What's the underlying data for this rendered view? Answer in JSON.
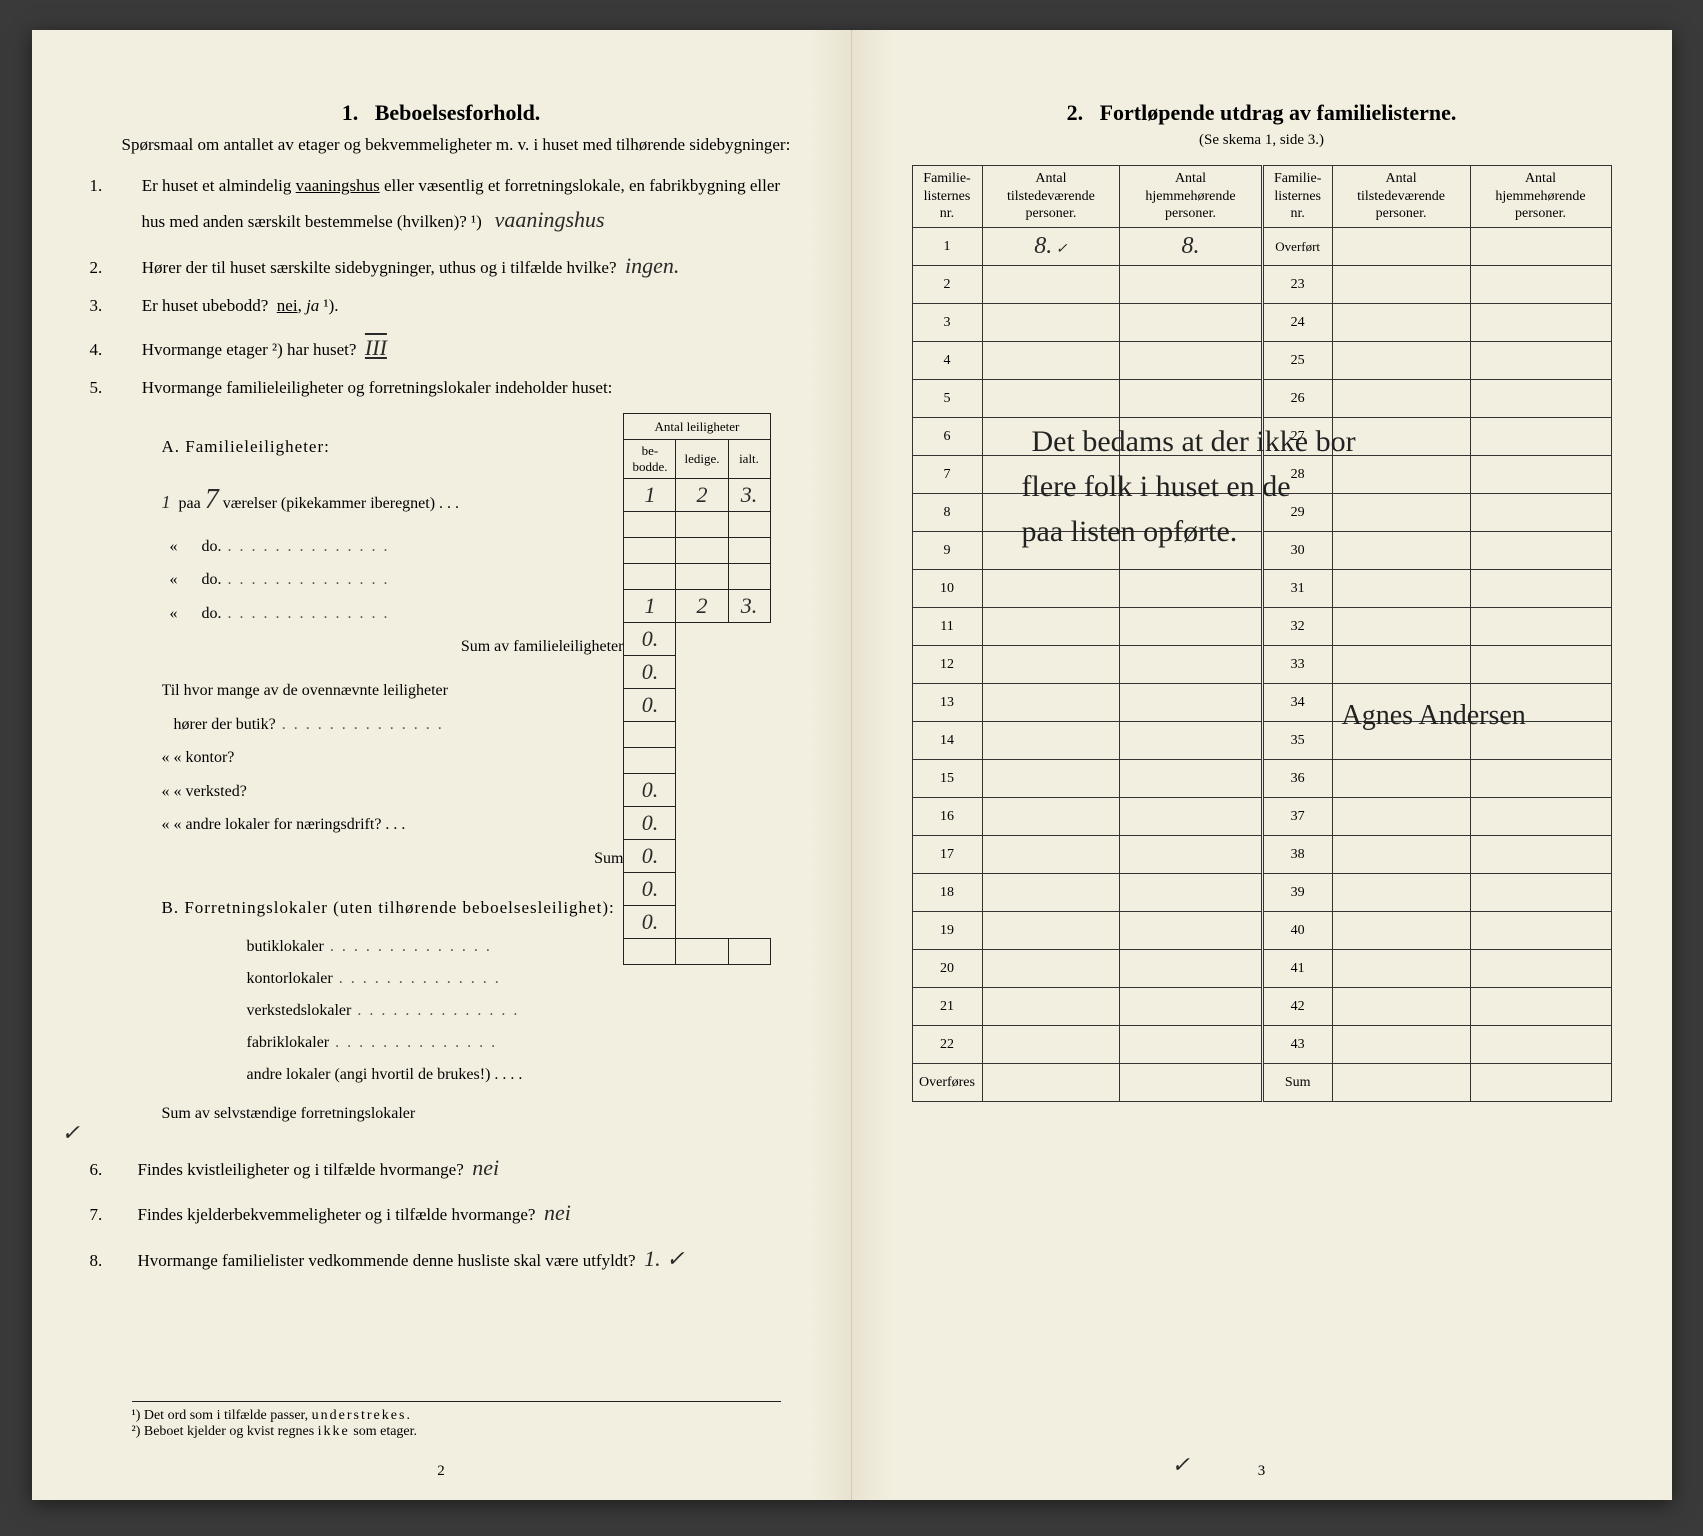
{
  "left": {
    "heading_num": "1.",
    "heading": "Beboelsesforhold.",
    "intro": "Spørsmaal om antallet av etager og bekvemmeligheter m. v. i huset med tilhørende sidebygninger:",
    "q1_label": "Er huset et almindelig vaaningshus eller væsentlig et forretningslokale, en fabrikbygning eller hus med anden særskilt bestemmelse (hvilken)? ¹)",
    "q1_underlined": "vaaningshus",
    "q1_hand": "vaaningshus",
    "q2_label": "Hører der til huset særskilte sidebygninger, uthus og i tilfælde hvilke?",
    "q2_hand": "ingen.",
    "q3_label": "Er huset ubebodd?",
    "q3_printed": "nei, ja ¹).",
    "q3_under": "nei",
    "q4_label": "Hvormange etager ²) har huset?",
    "q4_hand": "III",
    "q5_label": "Hvormange familieleiligheter og forretningslokaler indeholder huset:",
    "apt_header_group": "Antal leiligheter",
    "apt_h1": "be-\nbodde.",
    "apt_h2": "ledige.",
    "apt_h3": "ialt.",
    "sectA": "A. Familieleiligheter:",
    "rowA1_lead": "paa",
    "rowA1_num_hand": "7",
    "rowA1_text": "værelser (pikekammer iberegnet) . . .",
    "rowA1_c1": "1",
    "rowA1_c2": "2",
    "rowA1_c3": "3.",
    "row_do": "do.",
    "sumA_label": "Sum av familieleiligheter",
    "sumA_c1": "1",
    "sumA_c2": "2",
    "sumA_c3": "3.",
    "til_label": "Til hvor mange av de ovennævnte leiligheter",
    "butik": "hører der butik?",
    "kontor": "«     «   kontor?",
    "verksted": "«     «   verksted?",
    "andre_naering": "«     «   andre lokaler for næringsdrift? . . .",
    "zero": "0.",
    "sum_small": "Sum",
    "sectB": "B. Forretningslokaler (uten tilhørende beboelsesleilighet):",
    "b1": "butiklokaler",
    "b2": "kontorlokaler",
    "b3": "verkstedslokaler",
    "b4": "fabriklokaler",
    "b5": "andre lokaler (angi hvortil de brukes!)",
    "sumB": "Sum av selvstændige forretningslokaler",
    "q6": "Findes kvistleiligheter og i tilfælde hvormange?",
    "q6_hand": "nei",
    "q7": "Findes kjelderbekvemmeligheter og i tilfælde hvormange?",
    "q7_hand": "nei",
    "q8": "Hvormange familielister vedkommende denne husliste skal være utfyldt?",
    "q8_hand": "1. ✓",
    "fn1": "¹) Det ord som i tilfælde passer, understrekes.",
    "fn2": "²) Beboet kjelder og kvist regnes ikke som etager.",
    "fn_under": "understrekes",
    "fn_ikke": "ikke",
    "pagenum": "2"
  },
  "right": {
    "heading_num": "2.",
    "heading": "Fortløpende utdrag av familielisterne.",
    "sub": "(Se skema 1, side 3.)",
    "h_nr": "Familie-\nlisternes\nnr.",
    "h_tilstede": "Antal\ntilstedeværende\npersoner.",
    "h_hjemme": "Antal\nhjemmehørende\npersoner.",
    "overfort": "Overført",
    "overfores": "Overføres",
    "sum": "Sum",
    "row1_a": "8.",
    "row1_b": "8.",
    "left_nrs": [
      "1",
      "2",
      "3",
      "4",
      "5",
      "6",
      "7",
      "8",
      "9",
      "10",
      "11",
      "12",
      "13",
      "14",
      "15",
      "16",
      "17",
      "18",
      "19",
      "20",
      "21",
      "22"
    ],
    "right_nrs": [
      "",
      "23",
      "24",
      "25",
      "26",
      "27",
      "28",
      "29",
      "30",
      "31",
      "32",
      "33",
      "34",
      "35",
      "36",
      "37",
      "38",
      "39",
      "40",
      "41",
      "42",
      "43"
    ],
    "hand_line1": "Det bedams at der ikke bor",
    "hand_line2": "flere folk i huset en de",
    "hand_line3": "paa listen opførte.",
    "hand_sign": "Agnes Andersen",
    "tick": "✓",
    "pagenum": "3"
  },
  "colors": {
    "paper": "#f3efe0",
    "ink": "#1e1e1e",
    "hand": "#2a2a2a",
    "bg": "#3a3a3a"
  }
}
